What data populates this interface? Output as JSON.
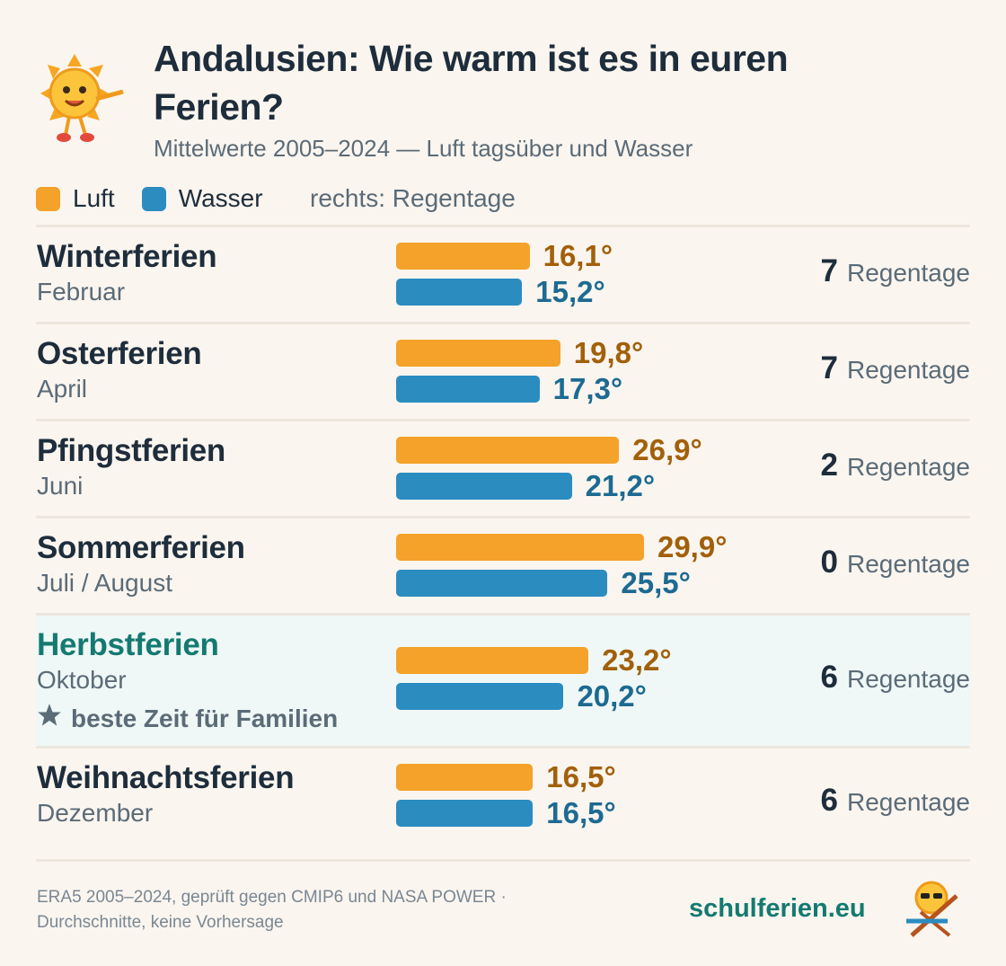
{
  "chart_data": {
    "type": "bar",
    "title": "Andalusien: Wie warm ist es in euren Ferien?",
    "subtitle": "Mittelwerte 2005–2024 — Luft tagsüber und Wasser",
    "legend_note": "rechts: Regentage",
    "categories": [
      "Winterferien",
      "Osterferien",
      "Pfingstferien",
      "Sommerferien",
      "Herbstferien",
      "Weihnachtsferien"
    ],
    "category_subtitles": [
      "Februar",
      "April",
      "Juni",
      "Juli / August",
      "Oktober",
      "Dezember"
    ],
    "highlight": {
      "index": 4,
      "note": "beste Zeit für Familien"
    },
    "series": [
      {
        "name": "Luft",
        "color": "#f4a229",
        "label_color": "#a2600b",
        "values": [
          16.1,
          19.8,
          26.9,
          29.9,
          23.2,
          16.5
        ],
        "value_labels": [
          "16,1°",
          "19,8°",
          "26,9°",
          "29,9°",
          "23,2°",
          "16,5°"
        ]
      },
      {
        "name": "Wasser",
        "color": "#2b8cc0",
        "label_color": "#1d6a92",
        "values": [
          15.2,
          17.3,
          21.2,
          25.5,
          20.2,
          16.5
        ],
        "value_labels": [
          "15,2°",
          "17,3°",
          "21,2°",
          "25,5°",
          "20,2°",
          "16,5°"
        ]
      }
    ],
    "rain_days": {
      "label": "Regentage",
      "values": [
        7,
        7,
        2,
        0,
        6,
        6
      ]
    },
    "footer": [
      "ERA5 2005–2024, geprüft gegen CMIP6 und NASA POWER ·",
      "Durchschnitte, keine Vorhersage"
    ],
    "brand": "schulferien.eu"
  }
}
